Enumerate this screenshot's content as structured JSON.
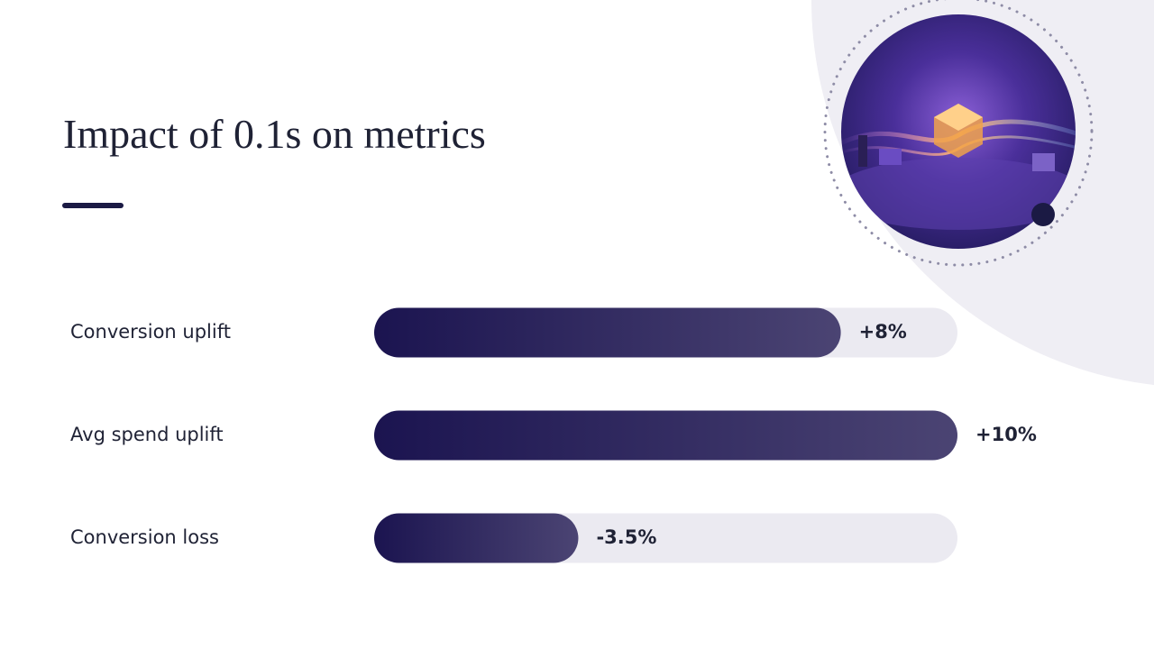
{
  "chart_data": {
    "type": "bar",
    "orientation": "horizontal",
    "title": "Impact of 0.1s on metrics",
    "categories": [
      "Conversion uplift",
      "Avg spend uplift",
      "Conversion loss"
    ],
    "values": [
      8,
      10,
      -3.5
    ],
    "value_labels": [
      "+8%",
      "+10%",
      "-3.5%"
    ],
    "color": "#1e1650"
  }
}
